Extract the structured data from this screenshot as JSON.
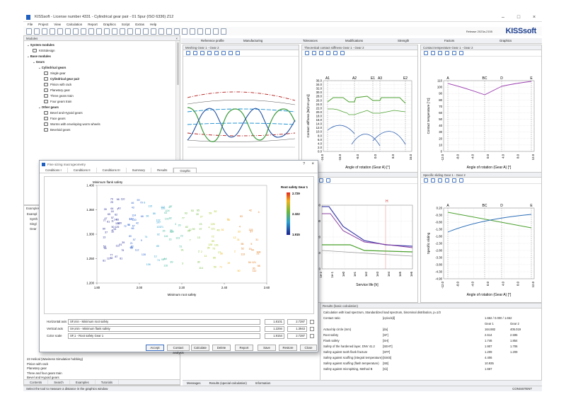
{
  "window": {
    "title": "KISSsoft - License number 4331 - Cylindrical gear pair - 01 Spur (ISO 6336) Z12"
  },
  "menu": [
    "File",
    "Project",
    "View",
    "Calculation",
    "Report",
    "Graphics",
    "Script",
    "Extras",
    "Help"
  ],
  "release": "Release 2023a-2155",
  "brand": "KISSsoft",
  "modules": {
    "header": "Modules",
    "items": [
      {
        "label": "System modules",
        "level": 0,
        "bold": true
      },
      {
        "label": "KISSdesign",
        "level": 1,
        "icon": "k-icon"
      },
      {
        "label": "Base modules",
        "level": 0,
        "bold": true
      },
      {
        "label": "Gears",
        "level": 1,
        "bold": true
      },
      {
        "label": "Cylindrical gears",
        "level": 2,
        "bold": true
      },
      {
        "label": "Single gear",
        "level": 3
      },
      {
        "label": "Cylindrical gear pair",
        "level": 3,
        "bold": true
      },
      {
        "label": "Pinion with rack",
        "level": 3
      },
      {
        "label": "Planetary gear",
        "level": 3
      },
      {
        "label": "Three gears train",
        "level": 3
      },
      {
        "label": "Four gears train",
        "level": 3
      },
      {
        "label": "Other gears",
        "level": 2,
        "bold": true
      },
      {
        "label": "Bevel and Hypoid gears",
        "level": 3
      },
      {
        "label": "Face gears",
        "level": 3
      },
      {
        "label": "Worms with enveloping worm wheels",
        "level": 3
      },
      {
        "label": "Beveloid gears",
        "level": 3
      }
    ]
  },
  "examples": {
    "header": "Examples",
    "items": [
      "Exampl",
      "Synth",
      "Singl",
      "Gear"
    ],
    "bottom_items": [
      "23 Helical (Waviness Simulation hobbing)",
      "Pinion with rack",
      "Planetary gear",
      "Three and four gears train",
      "Bevel and Hypoid gears"
    ]
  },
  "left_tabs": [
    "Contents",
    "Search",
    "Examples",
    "Tutorials"
  ],
  "top_tabs": [
    "Reference profile",
    "Manufacturing",
    "Tolerances",
    "Modifications",
    "Strength",
    "Factors",
    "Graphics"
  ],
  "graphs": {
    "meshing": {
      "title": "Meshing Gear 1 - Gear 2"
    },
    "stiffness": {
      "title": "Theoretical contact stiffness Gear 1 - Gear 2",
      "ylabel": "Contact stiffness [N/(mm·µm)]",
      "xlabel": "Angle of rotation (Gear A) [°]",
      "yticks": [
        "36.0",
        "34.0",
        "32.0",
        "30.0",
        "28.0",
        "26.0",
        "24.0",
        "22.0",
        "20.0",
        "18.0",
        "16.0",
        "14.0",
        "12.0",
        "10.0",
        "8.0",
        "6.0",
        "4.0",
        "2.0",
        "0.0"
      ],
      "xticks": [
        "-24.0",
        "-16.0",
        "-8.0",
        "0.0",
        "8.0",
        "16.0"
      ],
      "markers": [
        "A1",
        "A2",
        "E1",
        "A3",
        "E2"
      ]
    },
    "temperature": {
      "title": "Contact temperature Gear 1 - Gear 2",
      "ylabel": "Contact temperature [°C]",
      "xlabel": "Angle of rotation (Gear A) [°]",
      "yticks": [
        "110",
        "100",
        "90",
        "80",
        "70",
        "60",
        "50",
        "40",
        "30",
        "20",
        "10",
        "0"
      ],
      "xticks": [
        "-12.0",
        "-8.0",
        "-4.0",
        "0.0",
        "4.0",
        "8.0",
        "12.0"
      ],
      "markers": [
        "A",
        "BC",
        "D",
        "E"
      ]
    },
    "lifetime": {
      "title": "urves",
      "xlabel": "Service life [h]",
      "yticks": [
        "40",
        "30",
        "20",
        "10",
        "0"
      ],
      "xticks": [
        "1e-2",
        "1e-1",
        "1e0",
        "1e1",
        "1e2",
        "1e3",
        "1e4",
        "1e5",
        "1e6"
      ],
      "marker": "H"
    },
    "sliding": {
      "title": "Specific sliding Gear 1 - Gear 2",
      "ylabel": "Specific sliding",
      "xlabel": "Angle of rotation (Gear A) [°]",
      "yticks": [
        "0.20",
        "-0.30",
        "-0.80",
        "-1.30",
        "-1.80",
        "-2.30",
        "-2.80",
        "-3.30",
        "-3.80",
        "-4.30",
        "-4.90"
      ],
      "xticks": [
        "-12.0",
        "-8.0",
        "-4.0",
        "0.0",
        "4.0",
        "8.0",
        "12.0"
      ],
      "markers": [
        "A",
        "BC",
        "D",
        "E"
      ]
    }
  },
  "results": {
    "header": "Results (basic calculation)",
    "line1": "Calculation with load spectrum, Standardized load spectrum, binominal distribution, p=1/3",
    "contact_ratio_label": "Contact ratio",
    "contact_ratio_sym": "[εγ/εα/εβ]",
    "contact_ratio_val": "1.662 / 0.000 / 1.662",
    "col1": "Gear 1",
    "col2": "Gear 2",
    "rows": [
      {
        "label": "Actual tip circle (mm)",
        "sym": "[da]",
        "v1": "164.882",
        "v2": "405.019"
      },
      {
        "label": "Root safety",
        "sym": "[SF]",
        "v1": "2.614",
        "v2": "2.595"
      },
      {
        "label": "Flank safety",
        "sym": "[SH]",
        "v1": "1.746",
        "v2": "1.854"
      },
      {
        "label": "Safety of the hardened layer, DNV 41.2",
        "sym": "[SEHT]",
        "v1": "1.907",
        "v2": "1.706"
      },
      {
        "label": "Safety against tooth flank fracture",
        "sym": "[SFF]",
        "v1": "1.209",
        "v2": "1.209"
      },
      {
        "label": "Safety against scuffing (integral temperature)",
        "sym": "[SintS]",
        "v1": "4.406",
        "v2": ""
      },
      {
        "label": "Safety against scuffing (flash temperature)",
        "sym": "[SB]",
        "v1": "10.935",
        "v2": ""
      },
      {
        "label": "Safety against micropitting, Method B",
        "sym": "[Sλ]",
        "v1": "1.667",
        "v2": ""
      }
    ],
    "footer_tabs": [
      "Messages",
      "Results (special calculation)",
      "Information"
    ]
  },
  "dialog": {
    "title": "Fine sizing macrogeometry",
    "tabs": [
      "Conditions I",
      "Conditions II",
      "Conditions III",
      "Summary",
      "Results",
      "Graphic"
    ],
    "ylabel": "Minimum flank safety",
    "xlabel": "Minimum root safety",
    "legend_title": "Root safety Gear 1",
    "legend_max": "2.729",
    "legend_mid": "2.322",
    "legend_min": "1.915",
    "yticks": [
      "1.400",
      "1.350",
      "1.300",
      "1.250",
      "1.200"
    ],
    "xticks": [
      "1.80",
      "2.00",
      "2.20",
      "2.40",
      "2.60"
    ],
    "h_label": "Horizontal axis",
    "h_value": "SF,min - Minimum root safety",
    "h_min": "1.8101",
    "h_max": "2.7287",
    "v_label": "Vertical axis",
    "v_value": "SH,min - Minimum flank safety",
    "v_min": "1.2294",
    "v_max": "1.3943",
    "c_label": "Color scale",
    "c_value": "SF,1 - Root safety Gear 1",
    "c_min": "1.9154",
    "c_max": "2.7287",
    "buttons": [
      "Accept",
      "Contact analysis",
      "Calculate",
      "Delete",
      "Report",
      "Save",
      "Restore",
      "Close"
    ]
  },
  "status": {
    "left": "Select the tool to measure a distance in the graphics window",
    "right": "CONSISTENT"
  },
  "colors": {
    "accent": "#1f5fbf",
    "brand": "#1d3f8f",
    "green": "#4aa02c",
    "purple": "#8a3fa0"
  }
}
